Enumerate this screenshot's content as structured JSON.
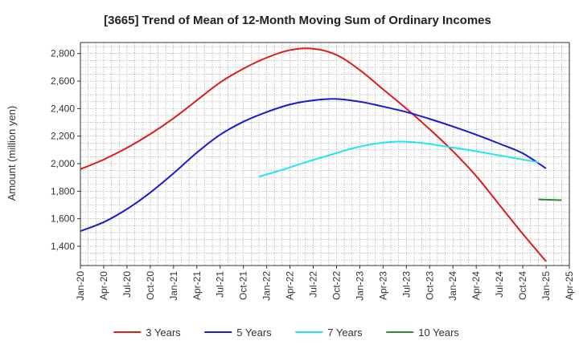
{
  "chart_data": {
    "type": "line",
    "title": "[3665]  Trend of Mean of 12-Month Moving Sum of Ordinary Incomes",
    "xlabel": "",
    "ylabel": "Amount (million yen)",
    "ylim": [
      1260,
      2880
    ],
    "yticks": [
      1400,
      1600,
      1800,
      2000,
      2200,
      2400,
      2600,
      2800
    ],
    "ytick_labels": [
      "1,400",
      "1,600",
      "1,800",
      "2,000",
      "2,200",
      "2,400",
      "2,600",
      "2,800"
    ],
    "xticks": [
      "Jan-20",
      "Apr-20",
      "Jul-20",
      "Oct-20",
      "Jan-21",
      "Apr-21",
      "Jul-21",
      "Oct-21",
      "Jan-22",
      "Apr-22",
      "Jul-22",
      "Oct-22",
      "Jan-23",
      "Apr-23",
      "Jul-23",
      "Oct-23",
      "Jan-24",
      "Apr-24",
      "Jul-24",
      "Oct-24",
      "Jan-25",
      "Apr-25"
    ],
    "grid": true,
    "legend_position": "bottom",
    "series": [
      {
        "name": "3 Years",
        "color": "#dd1c1c",
        "start": "Jan-20",
        "values": [
          1960,
          2030,
          2115,
          2215,
          2330,
          2460,
          2590,
          2690,
          2770,
          2825,
          2835,
          2790,
          2680,
          2540,
          2400,
          2250,
          2090,
          1910,
          1700,
          1490,
          1290
        ]
      },
      {
        "name": "5 Years",
        "color": "#1a1ad0",
        "start": "Jan-20",
        "values": [
          1510,
          1575,
          1670,
          1790,
          1930,
          2080,
          2210,
          2305,
          2375,
          2430,
          2460,
          2470,
          2450,
          2415,
          2375,
          2325,
          2270,
          2210,
          2145,
          2075,
          1965
        ]
      },
      {
        "name": "7 Years",
        "color": "#22e6ee",
        "start": "Dec-21",
        "values": [
          1905,
          1955,
          2010,
          2060,
          2110,
          2145,
          2160,
          2150,
          2125,
          2100,
          2070,
          2040,
          2010
        ]
      },
      {
        "name": "10 Years",
        "color": "#2e8b2e",
        "start": "Dec-24",
        "values": [
          1740,
          1735
        ]
      }
    ]
  }
}
